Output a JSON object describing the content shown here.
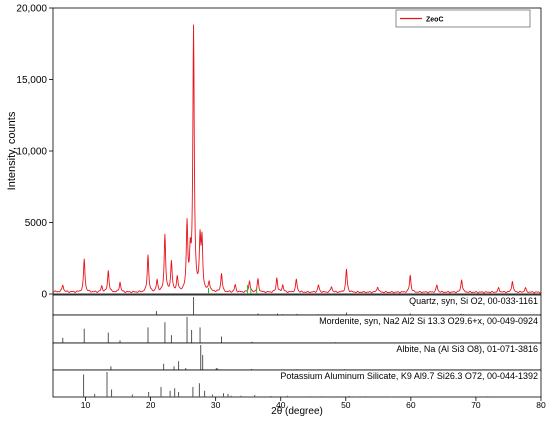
{
  "chart_data": {
    "type": "line",
    "xlabel": "2θ (degree)",
    "ylabel": "Intensity, counts",
    "xlim": [
      5,
      80
    ],
    "ylim": [
      0,
      20000
    ],
    "x_ticks": [
      10,
      20,
      30,
      40,
      50,
      60,
      70,
      80
    ],
    "y_ticks": [
      0,
      5000,
      10000,
      15000,
      20000
    ],
    "y_tick_labels": [
      "0",
      "5000",
      "10,000",
      "15,000",
      "20,000"
    ],
    "legend_position": "top-right",
    "colors": {
      "pattern": "#e8141c",
      "reference": "#555555",
      "minor_phase": "#2db82d"
    },
    "series": [
      {
        "name": "ZeoC",
        "peaks": [
          [
            6.5,
            500
          ],
          [
            9.8,
            2300
          ],
          [
            12.5,
            400
          ],
          [
            13.5,
            1500
          ],
          [
            15.3,
            700
          ],
          [
            19.6,
            2600
          ],
          [
            21.0,
            800
          ],
          [
            22.2,
            4000
          ],
          [
            23.2,
            2100
          ],
          [
            24.1,
            1000
          ],
          [
            25.6,
            4700
          ],
          [
            26.1,
            2300
          ],
          [
            26.6,
            18400
          ],
          [
            27.6,
            3500
          ],
          [
            27.9,
            3400
          ],
          [
            29.0,
            700
          ],
          [
            30.9,
            1300
          ],
          [
            33.0,
            500
          ],
          [
            35.2,
            800
          ],
          [
            36.5,
            900
          ],
          [
            39.4,
            1000
          ],
          [
            40.3,
            500
          ],
          [
            42.4,
            900
          ],
          [
            45.8,
            500
          ],
          [
            47.8,
            400
          ],
          [
            50.1,
            1600
          ],
          [
            54.9,
            400
          ],
          [
            59.9,
            1200
          ],
          [
            64.0,
            500
          ],
          [
            67.8,
            900
          ],
          [
            73.5,
            300
          ],
          [
            75.6,
            800
          ],
          [
            77.6,
            300
          ]
        ]
      }
    ],
    "references": [
      {
        "label": "Quartz, syn, Si O2, 00-033-1161",
        "lines": [
          [
            20.9,
            22
          ],
          [
            26.6,
            100
          ],
          [
            36.5,
            8
          ],
          [
            39.5,
            8
          ],
          [
            40.3,
            4
          ],
          [
            42.5,
            6
          ],
          [
            45.8,
            4
          ],
          [
            50.1,
            14
          ],
          [
            54.9,
            4
          ],
          [
            59.9,
            9
          ],
          [
            64.0,
            2
          ],
          [
            67.7,
            7
          ],
          [
            68.1,
            5
          ],
          [
            73.5,
            2
          ],
          [
            75.6,
            3
          ],
          [
            77.6,
            1
          ]
        ]
      },
      {
        "label": "Mordenite, syn, Na2 Al2 Si 13.3 O29.6+x, 00-049-0924",
        "lines": [
          [
            6.5,
            20
          ],
          [
            9.8,
            55
          ],
          [
            13.5,
            40
          ],
          [
            15.3,
            10
          ],
          [
            19.6,
            60
          ],
          [
            22.2,
            80
          ],
          [
            23.2,
            30
          ],
          [
            25.6,
            100
          ],
          [
            26.3,
            50
          ],
          [
            27.6,
            60
          ],
          [
            30.9,
            25
          ],
          [
            35.6,
            5
          ],
          [
            48.4,
            3
          ],
          [
            50.5,
            2
          ]
        ]
      },
      {
        "label": "Albite, Na (Al Si3 O8), 01-071-3816",
        "lines": [
          [
            13.9,
            15
          ],
          [
            22.0,
            25
          ],
          [
            23.6,
            15
          ],
          [
            24.3,
            35
          ],
          [
            25.4,
            8
          ],
          [
            27.7,
            100
          ],
          [
            28.0,
            60
          ],
          [
            30.1,
            8
          ],
          [
            30.3,
            6
          ],
          [
            35.5,
            4
          ],
          [
            42.5,
            3
          ],
          [
            49.8,
            3
          ]
        ]
      },
      {
        "label": "Potassium Aluminum Silicate, K9 Al9.7 Si26.3 O72, 00-044-1392",
        "lines": [
          [
            9.7,
            90
          ],
          [
            11.4,
            12
          ],
          [
            13.3,
            100
          ],
          [
            14.0,
            30
          ],
          [
            17.2,
            10
          ],
          [
            19.7,
            20
          ],
          [
            21.6,
            40
          ],
          [
            23.0,
            25
          ],
          [
            23.7,
            35
          ],
          [
            24.3,
            20
          ],
          [
            26.5,
            40
          ],
          [
            27.5,
            55
          ],
          [
            28.3,
            25
          ],
          [
            29.5,
            10
          ],
          [
            31.2,
            15
          ],
          [
            31.9,
            12
          ],
          [
            32.4,
            5
          ],
          [
            33.9,
            5
          ],
          [
            36.0,
            8
          ],
          [
            38.5,
            4
          ],
          [
            41.0,
            5
          ],
          [
            44.6,
            3
          ],
          [
            46.3,
            3
          ],
          [
            48.5,
            3
          ],
          [
            50.5,
            4
          ],
          [
            51.5,
            2
          ],
          [
            53.0,
            3
          ],
          [
            57.0,
            2
          ],
          [
            64.0,
            2
          ],
          [
            71.8,
            3
          ]
        ]
      }
    ]
  }
}
